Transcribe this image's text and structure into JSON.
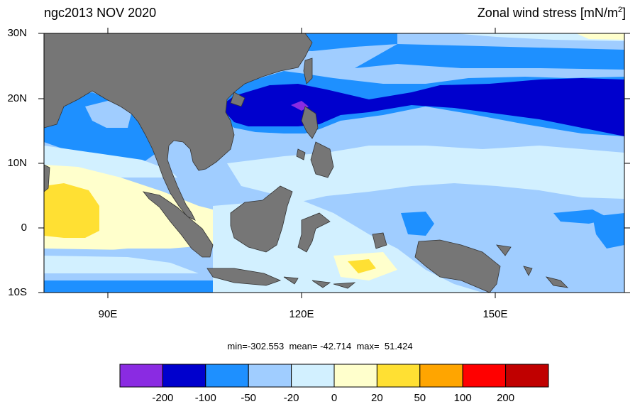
{
  "title_left": "ngc2013 NOV 2020",
  "title_right": {
    "text": "Zonal wind stress [mN/m",
    "superscript": "2",
    "suffix": "]"
  },
  "stats": "min=-302.553  mean= -42.714  max=  51.424",
  "axes": {
    "lat_labels": [
      "30N",
      "20N",
      "10N",
      "0",
      "10S"
    ],
    "lon_labels": [
      "90E",
      "120E",
      "150E"
    ]
  },
  "legend": {
    "labels": [
      "-200",
      "-100",
      "-50",
      "-20",
      "0",
      "20",
      "50",
      "100",
      "200"
    ],
    "colors": [
      "#8a2be2",
      "#0000cd",
      "#1e90ff",
      "#a0cdff",
      "#d2f0ff",
      "#ffffcc",
      "#ffe033",
      "#ffa500",
      "#ff0000",
      "#c00000"
    ]
  },
  "colors": {
    "land": "#767676",
    "base_ocean": "#a0cdff"
  }
}
